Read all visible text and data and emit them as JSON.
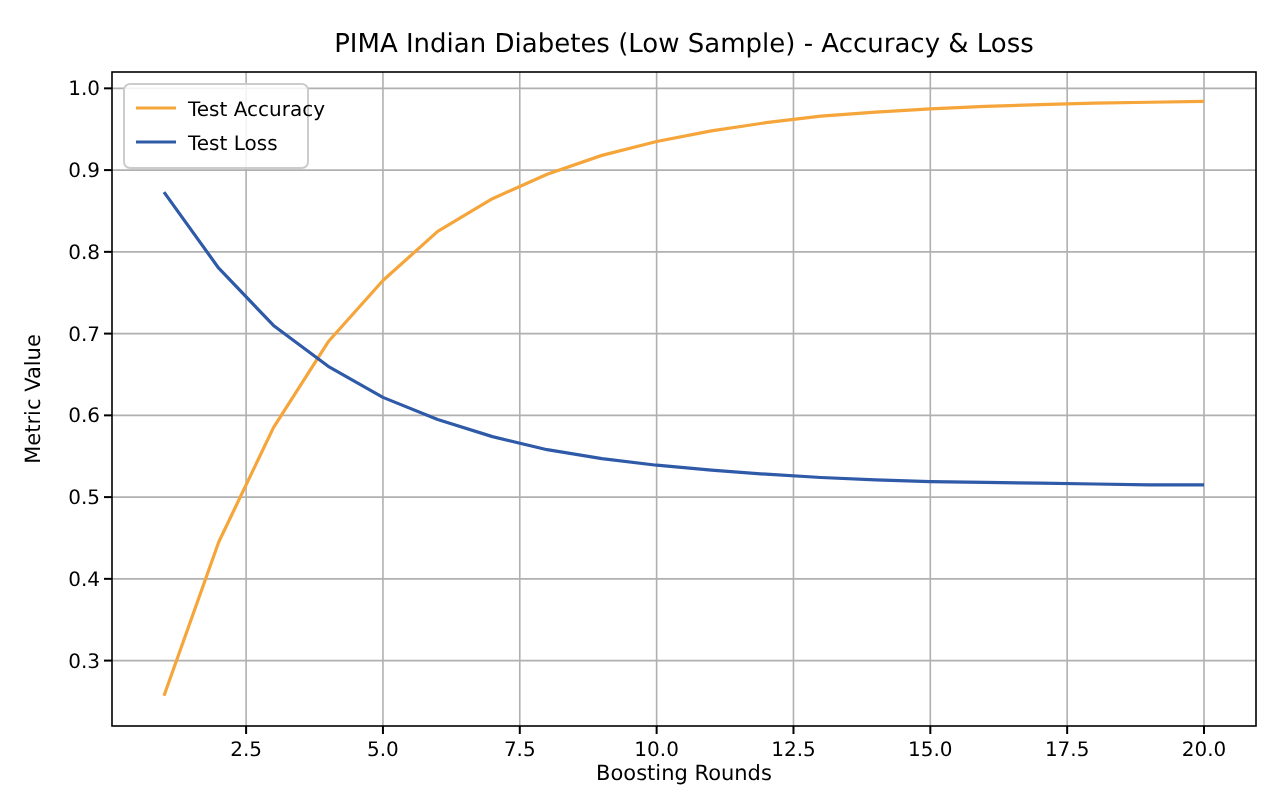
{
  "chart_data": {
    "type": "line",
    "title": "PIMA Indian Diabetes (Low Sample) - Accuracy & Loss",
    "xlabel": "Boosting Rounds",
    "ylabel": "Metric Value",
    "x": [
      1,
      2,
      3,
      4,
      5,
      6,
      7,
      8,
      9,
      10,
      11,
      12,
      13,
      14,
      15,
      16,
      17,
      18,
      19,
      20
    ],
    "series": [
      {
        "name": "Test Accuracy",
        "color": "#f5a53a",
        "values": [
          0.257,
          0.445,
          0.585,
          0.69,
          0.765,
          0.825,
          0.865,
          0.895,
          0.918,
          0.935,
          0.948,
          0.958,
          0.966,
          0.971,
          0.975,
          0.978,
          0.98,
          0.982,
          0.983,
          0.984
        ]
      },
      {
        "name": "Test Loss",
        "color": "#2f5aa8",
        "values": [
          0.873,
          0.78,
          0.71,
          0.66,
          0.622,
          0.595,
          0.574,
          0.558,
          0.547,
          0.539,
          0.533,
          0.528,
          0.524,
          0.521,
          0.519,
          0.518,
          0.517,
          0.516,
          0.515,
          0.515
        ]
      }
    ],
    "xlim": [
      0.05,
      20.95
    ],
    "ylim": [
      0.22,
      1.02
    ],
    "xticks": [
      {
        "value": 2.5,
        "label": "2.5"
      },
      {
        "value": 5,
        "label": "5.0"
      },
      {
        "value": 7.5,
        "label": "7.5"
      },
      {
        "value": 10,
        "label": "10.0"
      },
      {
        "value": 12.5,
        "label": "12.5"
      },
      {
        "value": 15,
        "label": "15.0"
      },
      {
        "value": 17.5,
        "label": "17.5"
      },
      {
        "value": 20,
        "label": "20.0"
      }
    ],
    "yticks": [
      {
        "value": 0.3,
        "label": "0.3"
      },
      {
        "value": 0.4,
        "label": "0.4"
      },
      {
        "value": 0.5,
        "label": "0.5"
      },
      {
        "value": 0.6,
        "label": "0.6"
      },
      {
        "value": 0.7,
        "label": "0.7"
      },
      {
        "value": 0.8,
        "label": "0.8"
      },
      {
        "value": 0.9,
        "label": "0.9"
      },
      {
        "value": 1,
        "label": "1.0"
      }
    ],
    "grid": true,
    "legend": "top left",
    "marker": "none",
    "line_style": "solid"
  }
}
